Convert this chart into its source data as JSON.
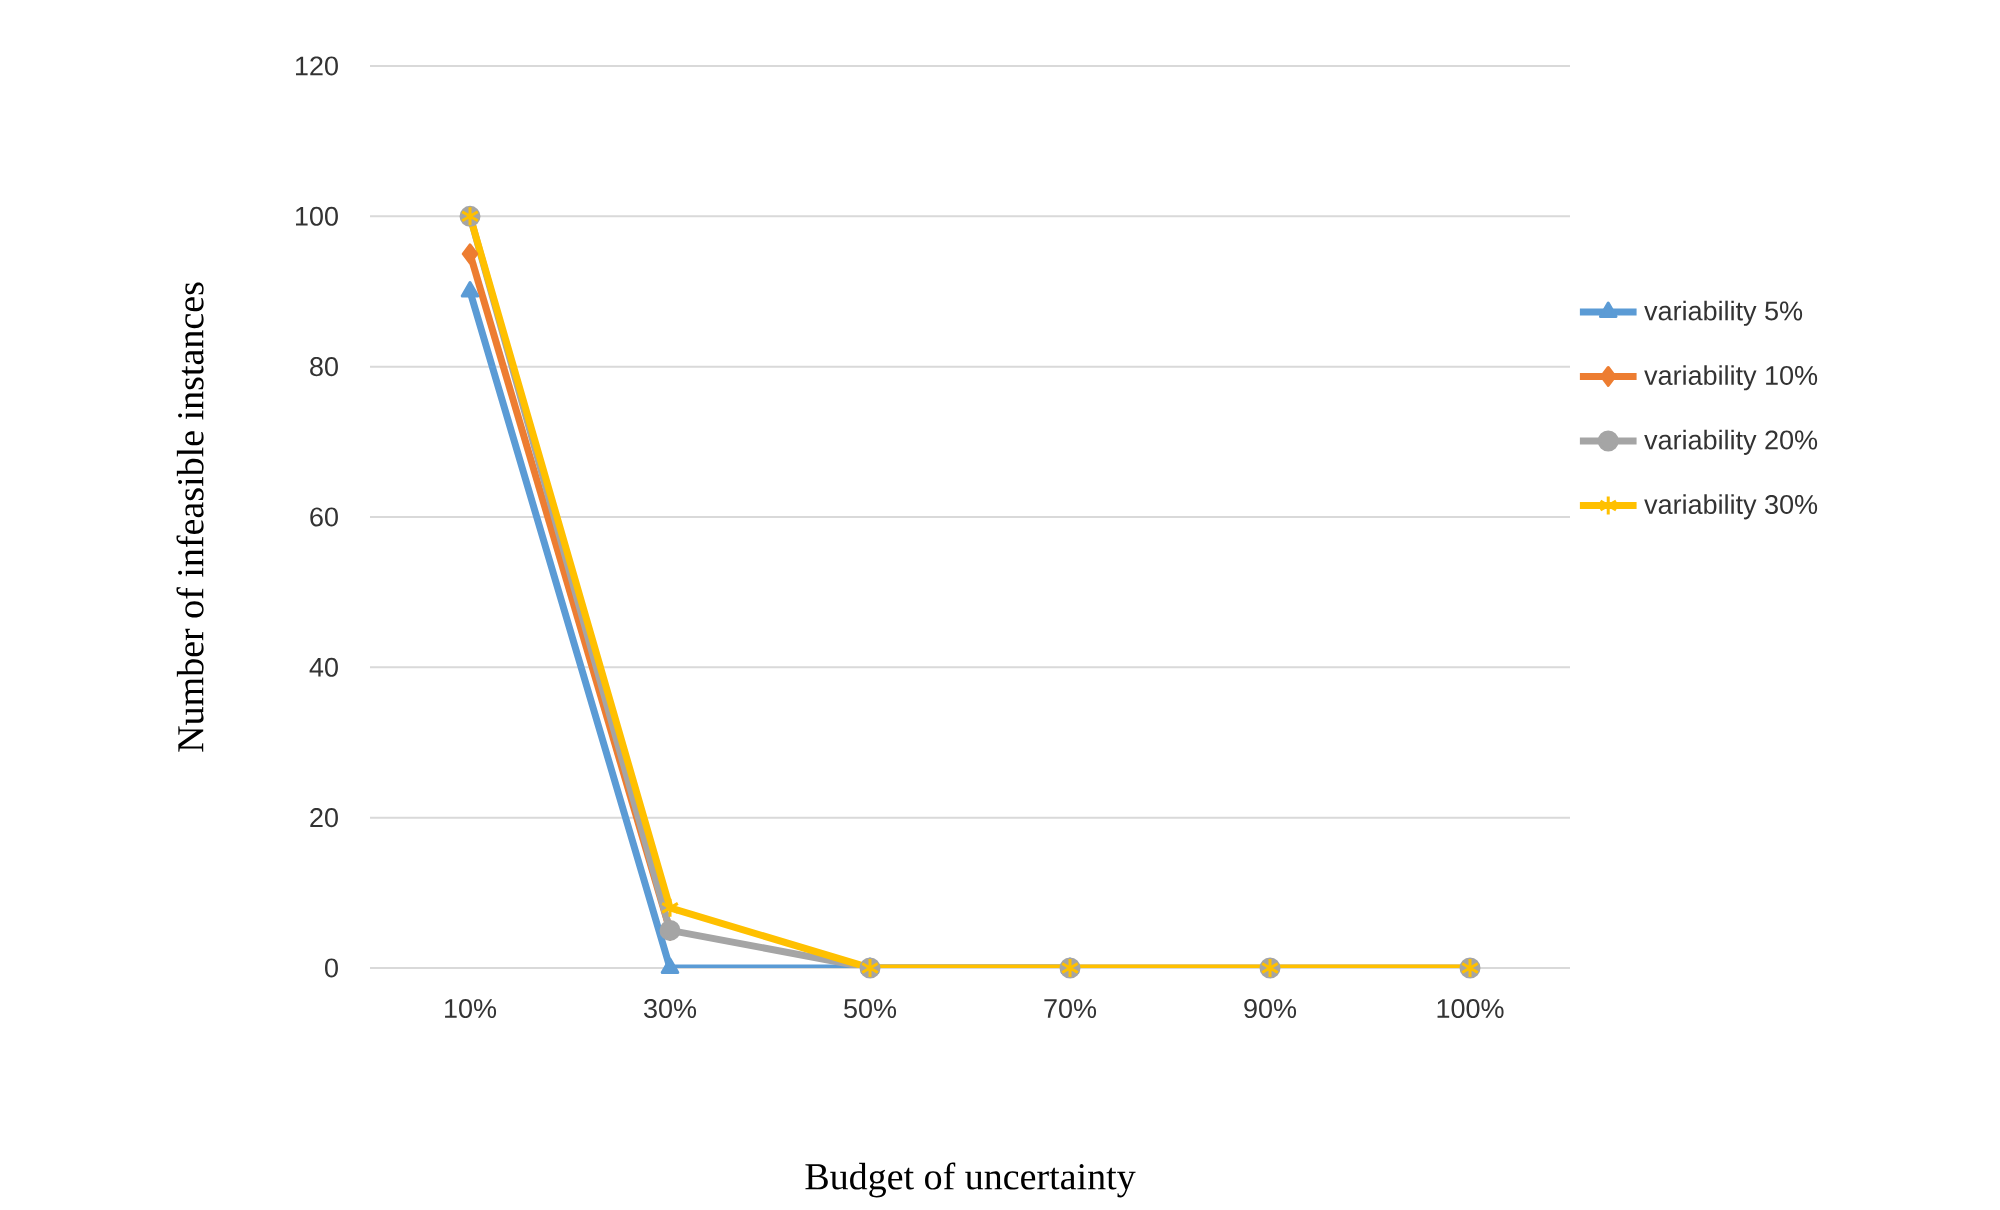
{
  "chart_data": {
    "type": "line",
    "xlabel": "Budget of uncertainty",
    "ylabel": "Number of infeasible instances",
    "categories": [
      "10%",
      "30%",
      "50%",
      "70%",
      "90%",
      "100%"
    ],
    "series": [
      {
        "name": "variability 5%",
        "color": "#5b9bd5",
        "marker": "triangle",
        "values": [
          90,
          0,
          0,
          0,
          null,
          null
        ]
      },
      {
        "name": "variability 10%",
        "color": "#ed7d31",
        "marker": "diamond",
        "values": [
          95,
          5,
          null,
          null,
          null,
          null
        ]
      },
      {
        "name": "variability 20%",
        "color": "#a5a5a5",
        "marker": "circle",
        "values": [
          100,
          5,
          0,
          0,
          0,
          0
        ]
      },
      {
        "name": "variability 30%",
        "color": "#ffc000",
        "marker": "cross",
        "values": [
          100,
          8,
          0,
          0,
          0,
          0
        ]
      }
    ],
    "ylim": [
      0,
      120
    ],
    "yticks": [
      0,
      20,
      40,
      60,
      80,
      100,
      120
    ],
    "grid": "y",
    "legend": "right",
    "line_style": "solid"
  }
}
